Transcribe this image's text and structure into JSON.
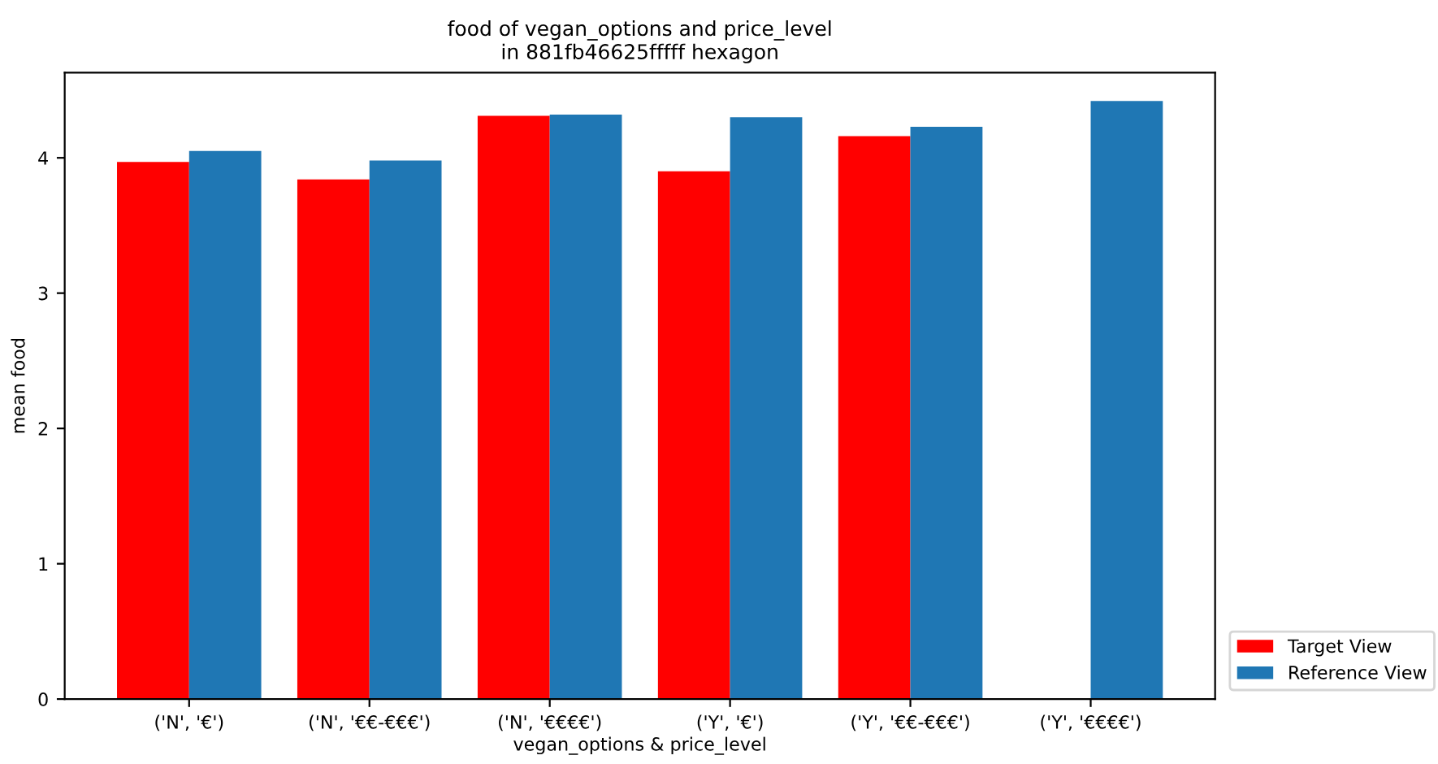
{
  "chart_data": {
    "type": "bar",
    "title": "food of vegan_options and price_level\nin 881fb46625fffff hexagon",
    "xlabel": "vegan_options & price_level",
    "ylabel": "mean food",
    "categories": [
      "('N', '€')",
      "('N', '€€-€€€')",
      "('N', '€€€€')",
      "('Y', '€')",
      "('Y', '€€-€€€')",
      "('Y', '€€€€')"
    ],
    "series": [
      {
        "name": "Target View",
        "color": "#ff0000",
        "values": [
          3.97,
          3.84,
          4.31,
          3.9,
          4.16,
          null
        ]
      },
      {
        "name": "Reference View",
        "color": "#1f77b4",
        "values": [
          4.05,
          3.98,
          4.32,
          4.3,
          4.23,
          4.42
        ]
      }
    ],
    "ylim": [
      0,
      4.63
    ],
    "yticks": [
      0,
      1,
      2,
      3,
      4
    ],
    "legend": "bottom right"
  }
}
